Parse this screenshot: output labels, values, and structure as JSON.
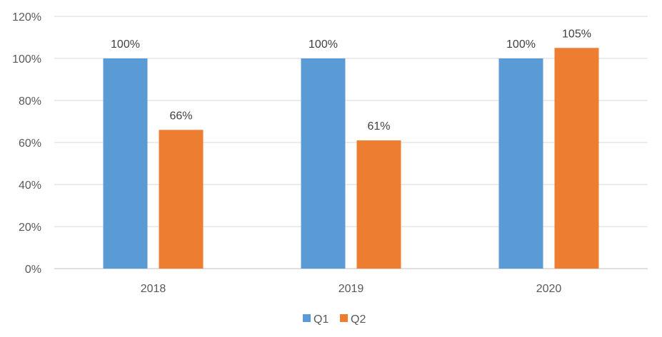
{
  "chart_data": {
    "type": "bar",
    "categories": [
      "2018",
      "2019",
      "2020"
    ],
    "series": [
      {
        "name": "Q1",
        "values": [
          100,
          100,
          100
        ],
        "labels": [
          "100%",
          "100%",
          "100%"
        ],
        "color": "#5B9BD5"
      },
      {
        "name": "Q2",
        "values": [
          66,
          61,
          105
        ],
        "labels": [
          "66%",
          "61%",
          "105%"
        ],
        "color": "#ED7D31"
      }
    ],
    "ylim": [
      0,
      120
    ],
    "yticks": [
      "0%",
      "20%",
      "40%",
      "60%",
      "80%",
      "100%",
      "120%"
    ],
    "grid": true,
    "legend_position": "bottom",
    "gridline_color": "#D9D9D9",
    "axis_color": "#BFBFBF"
  }
}
